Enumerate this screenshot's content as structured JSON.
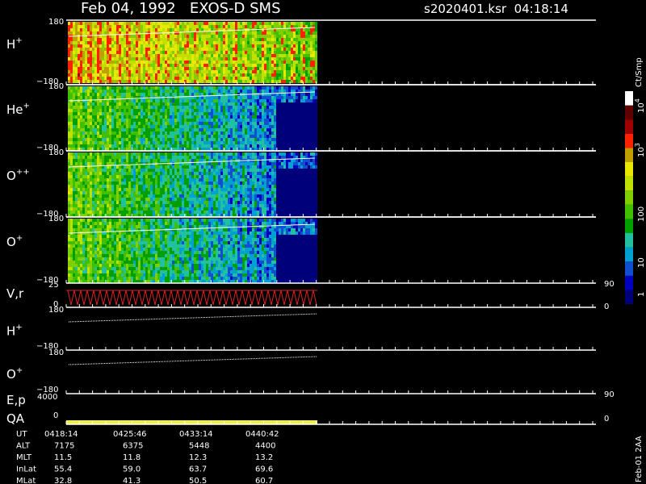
{
  "header": {
    "title": "Feb 04, 1992   EXOS-D SMS",
    "file": "s2020401.ksr  04:18:14"
  },
  "panels": [
    {
      "label": "H",
      "charge": "+",
      "top": "180",
      "bottom": "−180"
    },
    {
      "label": "He",
      "charge": "+",
      "top": "180",
      "bottom": "−180"
    },
    {
      "label": "O",
      "charge": "++",
      "top": "180",
      "bottom": "−180"
    },
    {
      "label": "O",
      "charge": "+",
      "top": "180",
      "bottom": "−180"
    }
  ],
  "vr": {
    "label": "V,r",
    "top": "25",
    "bottom": "0",
    "right_top": "90",
    "right_bottom": "0"
  },
  "orbit_panels": [
    {
      "label": "H",
      "charge": "+",
      "top": "180",
      "bottom": "−180"
    },
    {
      "label": "O",
      "charge": "+",
      "top": "180",
      "bottom": "−180"
    }
  ],
  "ep": {
    "label": "E,p",
    "top": "4000",
    "bottom": "0",
    "right_top": "90",
    "right_bottom": "0"
  },
  "qa": {
    "label": "QA"
  },
  "colorbar": {
    "unit": "Ct/Smp",
    "labels": [
      {
        "base": "10",
        "exp": "4"
      },
      {
        "base": "10",
        "exp": "3"
      },
      {
        "base": "100"
      },
      {
        "base": "10"
      },
      {
        "base": "1"
      }
    ]
  },
  "table": {
    "rows": [
      [
        "UT",
        "0418:14",
        "0425:46",
        "0433:14",
        "0440:42"
      ],
      [
        "ALT",
        "7175",
        "6375",
        "5448",
        "4400"
      ],
      [
        "MLT",
        "11.5",
        "11.8",
        "12.3",
        "13.2"
      ],
      [
        "InLat",
        "55.4",
        "59.0",
        "63.7",
        "69.6"
      ],
      [
        "MLat",
        "32.8",
        "41.3",
        "50.5",
        "60.7"
      ]
    ]
  },
  "footer": "Feb-01 2AA"
}
